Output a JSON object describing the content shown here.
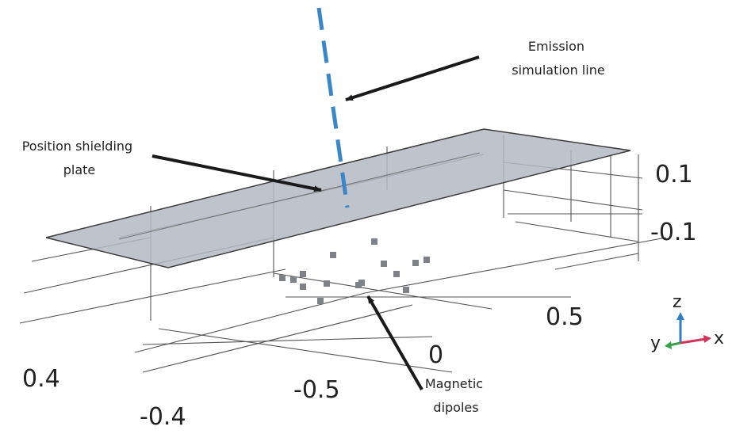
{
  "annotations": {
    "emission": [
      "Emission",
      "simulation line"
    ],
    "plate": [
      "Position shielding",
      "plate"
    ],
    "dipoles": [
      "Magnetic",
      "dipoles"
    ]
  },
  "axes": {
    "z_ticks": [
      "0.1",
      "-0.1"
    ],
    "x_ticks": [
      "0.5",
      "0",
      "-0.5"
    ],
    "y_ticks": [
      "0.4",
      "-0.4"
    ]
  },
  "triad": {
    "z": "z",
    "y": "y",
    "x": "x"
  },
  "colors": {
    "emission_line": "#3a86c8",
    "plate_fill": "#b4b9c2",
    "plate_stroke": "#3c3c3c",
    "dipole": "#7d8188",
    "arrow": "#1a1a1a",
    "triad_x": "#d2335a",
    "triad_y": "#37a348",
    "triad_z": "#2f7fc8"
  }
}
